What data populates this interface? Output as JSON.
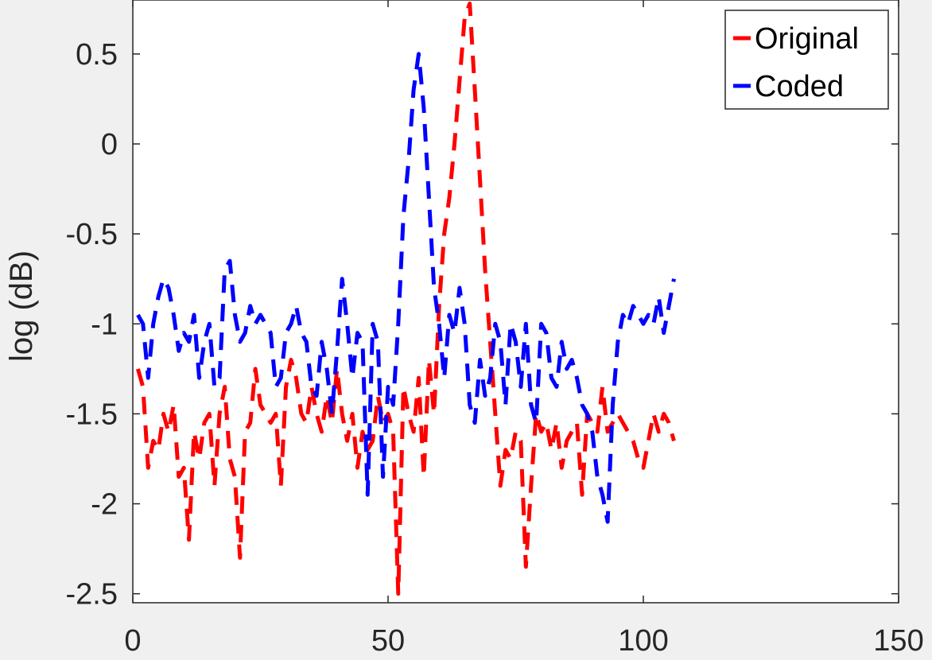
{
  "chart_data": {
    "type": "line",
    "title": "",
    "xlabel": "",
    "ylabel": "log (dB)",
    "xlim": [
      0,
      150
    ],
    "ylim": [
      -2.55,
      0.8
    ],
    "xticks": [
      0,
      50,
      100,
      150
    ],
    "yticks": [
      -2.5,
      -2,
      -1.5,
      -1,
      -0.5,
      0,
      0.5
    ],
    "grid": false,
    "legend_position": "top-right",
    "series": [
      {
        "name": "Original",
        "color": "#ff0000",
        "x": [
          1,
          2,
          3,
          4,
          5,
          6,
          7,
          8,
          9,
          10,
          11,
          12,
          13,
          14,
          15,
          16,
          17,
          18,
          19,
          20,
          21,
          22,
          23,
          24,
          25,
          26,
          27,
          28,
          29,
          30,
          31,
          32,
          33,
          34,
          35,
          36,
          37,
          38,
          39,
          40,
          41,
          42,
          43,
          44,
          45,
          46,
          47,
          48,
          49,
          50,
          51,
          52,
          53,
          54,
          55,
          56,
          57,
          58,
          59,
          60,
          61,
          62,
          63,
          64,
          65,
          66,
          67,
          68,
          69,
          70,
          71,
          72,
          73,
          74,
          75,
          76,
          77,
          78,
          79,
          80,
          81,
          82,
          83,
          84,
          85,
          86,
          87,
          88,
          89,
          90,
          91,
          92,
          93,
          94,
          95,
          96,
          97,
          98,
          99,
          100,
          101,
          102,
          103,
          104,
          105,
          106
        ],
        "y": [
          -1.25,
          -1.35,
          -1.8,
          -1.65,
          -1.7,
          -1.5,
          -1.6,
          -1.45,
          -1.85,
          -1.8,
          -2.2,
          -1.6,
          -1.75,
          -1.55,
          -1.5,
          -1.9,
          -1.5,
          -1.35,
          -1.75,
          -1.85,
          -2.3,
          -1.6,
          -1.55,
          -1.25,
          -1.45,
          -1.5,
          -1.55,
          -1.5,
          -1.9,
          -1.35,
          -1.2,
          -1.3,
          -1.5,
          -1.55,
          -1.35,
          -1.5,
          -1.6,
          -1.4,
          -1.55,
          -1.25,
          -1.5,
          -1.65,
          -1.5,
          -1.8,
          -1.6,
          -1.7,
          -1.65,
          -1.4,
          -1.55,
          -1.5,
          -1.6,
          -2.5,
          -1.35,
          -1.5,
          -1.6,
          -1.3,
          -1.85,
          -1.2,
          -1.5,
          -0.9,
          -0.5,
          -0.3,
          0.0,
          0.35,
          0.7,
          0.78,
          0.3,
          -0.2,
          -0.7,
          -1.1,
          -1.5,
          -1.9,
          -1.7,
          -1.75,
          -1.6,
          -1.65,
          -2.35,
          -1.9,
          -1.5,
          -1.6,
          -1.55,
          -1.7,
          -1.55,
          -1.8,
          -1.65,
          -1.6,
          -1.55,
          -1.95,
          -1.5,
          -1.55,
          -1.6,
          -1.35,
          -1.6,
          -1.55,
          -1.5,
          -1.55,
          -1.6,
          -1.65,
          -1.75,
          -1.8,
          -1.65,
          -1.5,
          -1.6,
          -1.5,
          -1.55,
          -1.65
        ]
      },
      {
        "name": "Coded",
        "color": "#0000ff",
        "x": [
          1,
          2,
          3,
          4,
          5,
          6,
          7,
          8,
          9,
          10,
          11,
          12,
          13,
          14,
          15,
          16,
          17,
          18,
          19,
          20,
          21,
          22,
          23,
          24,
          25,
          26,
          27,
          28,
          29,
          30,
          31,
          32,
          33,
          34,
          35,
          36,
          37,
          38,
          39,
          40,
          41,
          42,
          43,
          44,
          45,
          46,
          47,
          48,
          49,
          50,
          51,
          52,
          53,
          54,
          55,
          56,
          57,
          58,
          59,
          60,
          61,
          62,
          63,
          64,
          65,
          66,
          67,
          68,
          69,
          70,
          71,
          72,
          73,
          74,
          75,
          76,
          77,
          78,
          79,
          80,
          81,
          82,
          83,
          84,
          85,
          86,
          87,
          88,
          89,
          90,
          91,
          92,
          93,
          94,
          95,
          96,
          97,
          98,
          99,
          100,
          101,
          102,
          103,
          104,
          105,
          106
        ],
        "y": [
          -0.95,
          -1.0,
          -1.3,
          -1.0,
          -0.85,
          -0.75,
          -0.8,
          -0.95,
          -1.15,
          -1.05,
          -1.1,
          -0.95,
          -1.3,
          -1.1,
          -1.0,
          -1.35,
          -1.3,
          -0.7,
          -0.65,
          -0.95,
          -1.1,
          -1.05,
          -0.9,
          -1.0,
          -0.95,
          -1.0,
          -1.05,
          -1.35,
          -1.3,
          -1.05,
          -1.0,
          -0.9,
          -1.05,
          -1.1,
          -1.35,
          -1.4,
          -1.1,
          -1.25,
          -1.5,
          -1.15,
          -0.75,
          -1.0,
          -1.3,
          -1.05,
          -1.1,
          -1.95,
          -1.0,
          -1.1,
          -1.85,
          -1.35,
          -1.45,
          -1.0,
          -0.4,
          -0.1,
          0.3,
          0.5,
          0.2,
          -0.3,
          -0.8,
          -1.0,
          -1.3,
          -0.95,
          -1.05,
          -0.8,
          -1.0,
          -1.45,
          -1.55,
          -1.2,
          -1.4,
          -1.3,
          -1.0,
          -1.1,
          -1.45,
          -1.0,
          -1.1,
          -1.35,
          -1.0,
          -1.45,
          -1.55,
          -1.0,
          -1.05,
          -1.3,
          -1.35,
          -1.1,
          -1.25,
          -1.2,
          -1.3,
          -1.45,
          -1.5,
          -1.6,
          -1.85,
          -1.95,
          -2.1,
          -1.45,
          -1.1,
          -0.95,
          -1.0,
          -0.9,
          -0.95,
          -1.0,
          -0.95,
          -1.0,
          -0.85,
          -1.05,
          -0.9,
          -0.75
        ]
      }
    ]
  }
}
